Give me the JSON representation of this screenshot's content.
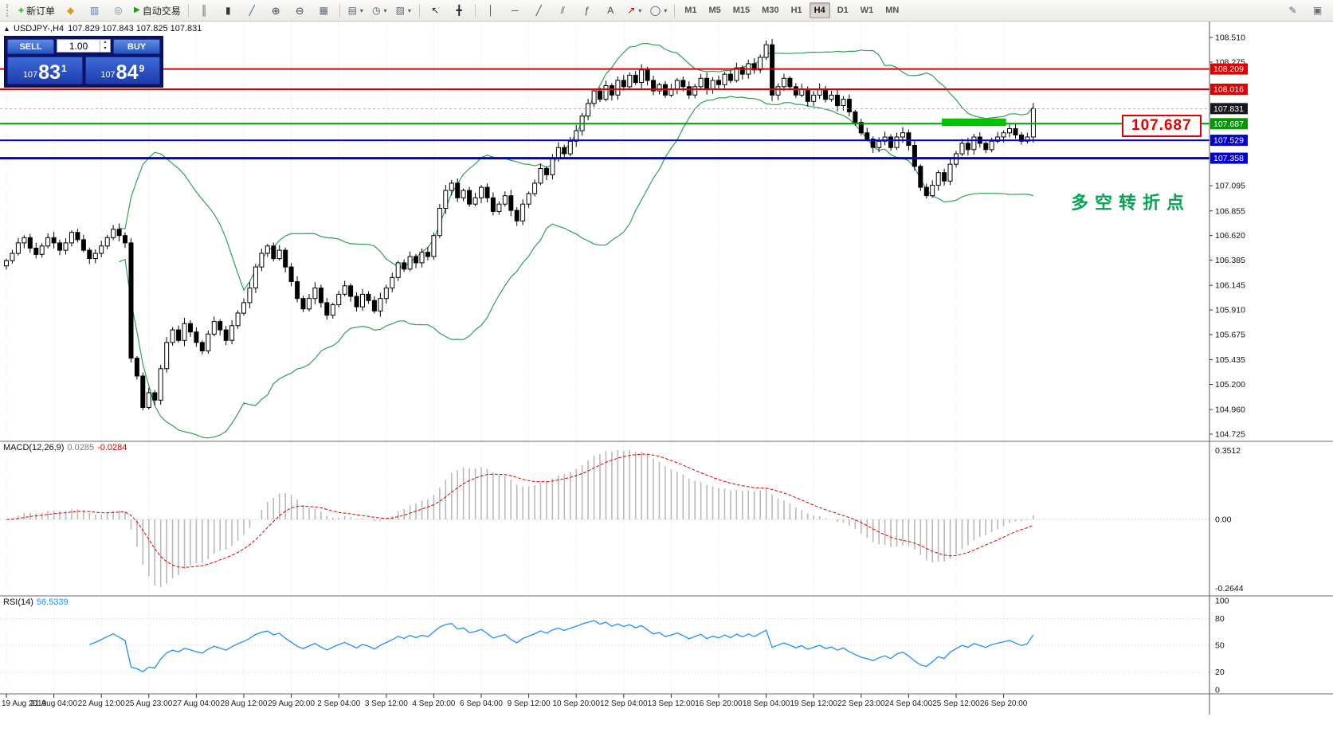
{
  "toolbar": {
    "new_order_label": "新订单",
    "autotrading_label": "自动交易",
    "timeframes": [
      "M1",
      "M5",
      "M15",
      "M30",
      "H1",
      "H4",
      "D1",
      "W1",
      "MN"
    ],
    "active_timeframe": "H4",
    "glyphs": {
      "plus": "+",
      "market": "◆",
      "data_window": "▥",
      "navigator": "◎",
      "play": "▶",
      "bars": "║",
      "candles": "▮",
      "line_chart": "╱",
      "zoom_in": "⊕",
      "zoom_out": "⊖",
      "grid": "▦",
      "tile": "▤",
      "clock": "◷",
      "template": "▧",
      "cursor": "↖",
      "crosshair": "╋",
      "vline": "│",
      "hline": "─",
      "trend": "╱",
      "channel": "⫽",
      "fib": "ƒ",
      "text_tool": "A",
      "arrows": "↗",
      "shapes": "◯",
      "caret": "▾",
      "pencil": "✎",
      "layout": "▣",
      "collapse": "▲",
      "spin_up": "▴",
      "spin_down": "▾"
    }
  },
  "chart": {
    "symbol": "USDJPY-,H4",
    "ohlc_text": "107.829 107.843 107.825 107.831"
  },
  "trade_panel": {
    "sell_label": "SELL",
    "buy_label": "BUY",
    "lot_value": "1.00",
    "sell_price_int": "107",
    "sell_price_big": "83",
    "sell_price_sup": "1",
    "buy_price_int": "107",
    "buy_price_big": "84",
    "buy_price_sup": "9"
  },
  "annotations": {
    "price_callout": "107.687",
    "note_text": "多空转折点"
  },
  "price_axis": {
    "grid_labels": [
      "108.510",
      "108.275",
      "107.095",
      "106.855",
      "106.620",
      "106.385",
      "106.145",
      "105.910",
      "105.675",
      "105.435",
      "105.200",
      "104.960",
      "104.725"
    ],
    "tags": [
      {
        "text": "108.209",
        "color": "#dd0000"
      },
      {
        "text": "108.016",
        "color": "#dd0000"
      },
      {
        "text": "107.831",
        "color": "#17171c"
      },
      {
        "text": "107.687",
        "color": "#009a00"
      },
      {
        "text": "107.529",
        "color": "#0000cc"
      },
      {
        "text": "107.358",
        "color": "#0000cc"
      }
    ]
  },
  "macd_panel": {
    "name": "MACD(12,26,9)",
    "value_main": "0.0285",
    "value_signal": "-0.0284",
    "axis_top": "0.3512",
    "axis_zero": "0.00",
    "axis_bottom": "-0.2644"
  },
  "rsi_panel": {
    "name": "RSI(14)",
    "value": "56.5339",
    "axis": [
      "100",
      "80",
      "50",
      "20",
      "0"
    ]
  },
  "time_axis": {
    "labels": [
      "19 Aug 2019",
      "21 Aug 04:00",
      "22 Aug 12:00",
      "25 Aug 23:00",
      "27 Aug 04:00",
      "28 Aug 12:00",
      "29 Aug 20:00",
      "2 Sep 04:00",
      "3 Sep 12:00",
      "4 Sep 20:00",
      "6 Sep 04:00",
      "9 Sep 12:00",
      "10 Sep 20:00",
      "12 Sep 04:00",
      "13 Sep 12:00",
      "16 Sep 20:00",
      "18 Sep 04:00",
      "19 Sep 12:00",
      "22 Sep 23:00",
      "24 Sep 04:00",
      "25 Sep 12:00",
      "26 Sep 20:00"
    ]
  },
  "chart_data": {
    "type": "candlestick",
    "symbol": "USDJPY",
    "timeframe": "H4",
    "price_range": [
      104.725,
      108.51
    ],
    "closes": [
      106.38,
      106.45,
      106.55,
      106.6,
      106.5,
      106.44,
      106.52,
      106.6,
      106.55,
      106.48,
      106.55,
      106.65,
      106.58,
      106.48,
      106.4,
      106.45,
      106.52,
      106.6,
      106.68,
      106.62,
      106.55,
      105.45,
      105.28,
      104.98,
      105.12,
      105.05,
      105.35,
      105.6,
      105.72,
      105.62,
      105.78,
      105.7,
      105.6,
      105.52,
      105.68,
      105.8,
      105.72,
      105.62,
      105.76,
      105.88,
      105.98,
      106.12,
      106.32,
      106.45,
      106.52,
      106.4,
      106.48,
      106.32,
      106.18,
      106.02,
      105.92,
      106.02,
      106.12,
      105.98,
      105.86,
      105.96,
      106.06,
      106.14,
      106.04,
      105.94,
      106.06,
      106.0,
      105.9,
      106.02,
      106.12,
      106.22,
      106.36,
      106.3,
      106.42,
      106.36,
      106.46,
      106.42,
      106.62,
      106.88,
      107.05,
      107.12,
      106.98,
      107.05,
      106.92,
      106.98,
      107.08,
      106.98,
      106.85,
      106.92,
      107.0,
      106.86,
      106.76,
      106.92,
      107.02,
      107.12,
      107.26,
      107.2,
      107.36,
      107.46,
      107.4,
      107.52,
      107.62,
      107.76,
      107.88,
      108.0,
      107.92,
      108.05,
      107.96,
      108.1,
      108.04,
      108.15,
      108.08,
      108.2,
      108.1,
      108.0,
      108.06,
      107.96,
      108.02,
      108.1,
      108.04,
      107.96,
      108.04,
      108.12,
      108.02,
      108.1,
      108.06,
      108.16,
      108.1,
      108.22,
      108.16,
      108.26,
      108.2,
      108.32,
      108.44,
      107.96,
      108.04,
      108.12,
      108.04,
      107.96,
      108.02,
      107.9,
      107.96,
      108.02,
      107.92,
      107.96,
      107.86,
      107.92,
      107.8,
      107.7,
      107.6,
      107.54,
      107.46,
      107.52,
      107.56,
      107.46,
      107.56,
      107.6,
      107.48,
      107.28,
      107.08,
      107.0,
      107.1,
      107.22,
      107.14,
      107.3,
      107.4,
      107.5,
      107.44,
      107.56,
      107.5,
      107.44,
      107.52,
      107.56,
      107.6,
      107.64,
      107.58,
      107.52,
      107.56,
      107.83
    ],
    "bid_price": 107.831,
    "horizontal_lines": [
      {
        "price": 108.209,
        "color": "#dd0000",
        "width": 2
      },
      {
        "price": 108.016,
        "color": "#dd0000",
        "width": 2
      },
      {
        "price": 107.687,
        "color": "#009a00",
        "width": 2
      },
      {
        "price": 107.529,
        "color": "#0000cc",
        "width": 2
      },
      {
        "price": 107.358,
        "color": "#0000cc",
        "width": 3
      }
    ],
    "highlight_zone": {
      "start_index": 158,
      "end_index": 168,
      "price_top": 107.737,
      "price_bottom": 107.665,
      "color": "#00c400"
    },
    "bollinger": {
      "period": 20,
      "deviation": 2,
      "color": "#2fa05a"
    },
    "macd": {
      "fast": 12,
      "slow": 26,
      "signal": 9,
      "current_main": 0.0285,
      "current_signal": -0.0284,
      "axis_max": 0.3512,
      "axis_min": -0.2644
    },
    "rsi": {
      "period": 14,
      "current": 56.5339,
      "levels": [
        80,
        50,
        20
      ]
    }
  }
}
